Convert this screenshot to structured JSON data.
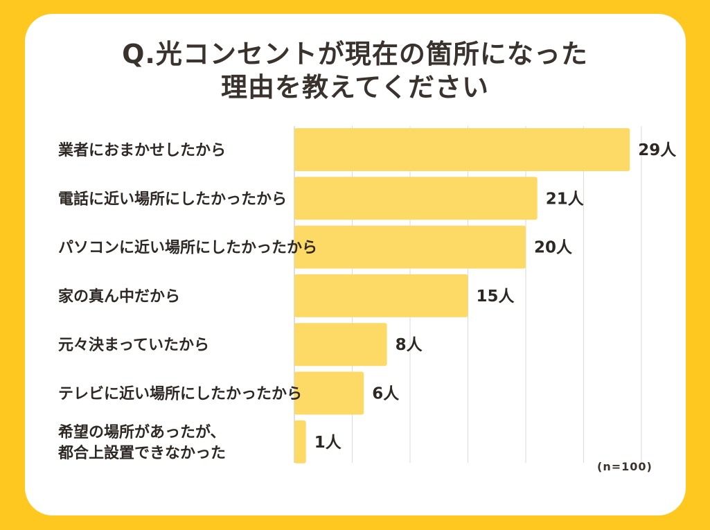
{
  "title_line1": "Q.光コンセントが現在の箇所になった",
  "title_line2": "理由を教えてください",
  "note": "(n=100)",
  "colors": {
    "background": "#FFC820",
    "bar": "#FDD966",
    "text": "#2E2824"
  },
  "chart_data": {
    "type": "bar",
    "orientation": "horizontal",
    "categories": [
      [
        "業者におまかせしたから"
      ],
      [
        "電話に近い場所にしたかったから"
      ],
      [
        "パソコンに近い場所にしたかったから"
      ],
      [
        "家の真ん中だから"
      ],
      [
        "元々決まっていたから"
      ],
      [
        "テレビに近い場所にしたかったから"
      ],
      [
        "希望の場所があったが、",
        "都合上設置できなかった"
      ]
    ],
    "values": [
      29,
      21,
      20,
      15,
      8,
      6,
      1
    ],
    "value_labels": [
      "29人",
      "21人",
      "20人",
      "15人",
      "8人",
      "6人",
      "1人"
    ],
    "xlim": [
      0,
      30
    ],
    "grid": true
  }
}
